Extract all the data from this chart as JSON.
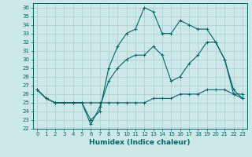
{
  "xlabel": "Humidex (Indice chaleur)",
  "ylabel": "",
  "background_color": "#cde8e8",
  "grid_color": "#a8cccc",
  "line_color": "#006666",
  "xlim": [
    -0.5,
    23.5
  ],
  "ylim": [
    22,
    36.5
  ],
  "yticks": [
    22,
    23,
    24,
    25,
    26,
    27,
    28,
    29,
    30,
    31,
    32,
    33,
    34,
    35,
    36
  ],
  "xticks": [
    0,
    1,
    2,
    3,
    4,
    5,
    6,
    7,
    8,
    9,
    10,
    11,
    12,
    13,
    14,
    15,
    16,
    17,
    18,
    19,
    20,
    21,
    22,
    23
  ],
  "line1_x": [
    0,
    1,
    2,
    3,
    4,
    5,
    6,
    7,
    8,
    9,
    10,
    11,
    12,
    13,
    14,
    15,
    16,
    17,
    18,
    19,
    20,
    21,
    22,
    23
  ],
  "line1_y": [
    26.5,
    25.5,
    25.0,
    25.0,
    25.0,
    25.0,
    23.0,
    24.0,
    29.0,
    31.5,
    33.0,
    33.5,
    36.0,
    35.5,
    33.0,
    33.0,
    34.5,
    34.0,
    33.5,
    33.5,
    32.0,
    30.0,
    26.0,
    25.5
  ],
  "line2_x": [
    0,
    1,
    2,
    3,
    4,
    5,
    6,
    7,
    8,
    9,
    10,
    11,
    12,
    13,
    14,
    15,
    16,
    17,
    18,
    19,
    20,
    21,
    22,
    23
  ],
  "line2_y": [
    26.5,
    25.5,
    25.0,
    25.0,
    25.0,
    25.0,
    22.5,
    24.5,
    27.5,
    29.0,
    30.0,
    30.5,
    30.5,
    31.5,
    30.5,
    27.5,
    28.0,
    29.5,
    30.5,
    32.0,
    32.0,
    30.0,
    26.5,
    25.5
  ],
  "line3_x": [
    0,
    1,
    2,
    3,
    4,
    5,
    6,
    7,
    8,
    9,
    10,
    11,
    12,
    13,
    14,
    15,
    16,
    17,
    18,
    19,
    20,
    21,
    22,
    23
  ],
  "line3_y": [
    26.5,
    25.5,
    25.0,
    25.0,
    25.0,
    25.0,
    25.0,
    25.0,
    25.0,
    25.0,
    25.0,
    25.0,
    25.0,
    25.5,
    25.5,
    25.5,
    26.0,
    26.0,
    26.0,
    26.5,
    26.5,
    26.5,
    26.0,
    26.0
  ],
  "axis_fontsize": 6.5,
  "tick_fontsize": 5.5
}
